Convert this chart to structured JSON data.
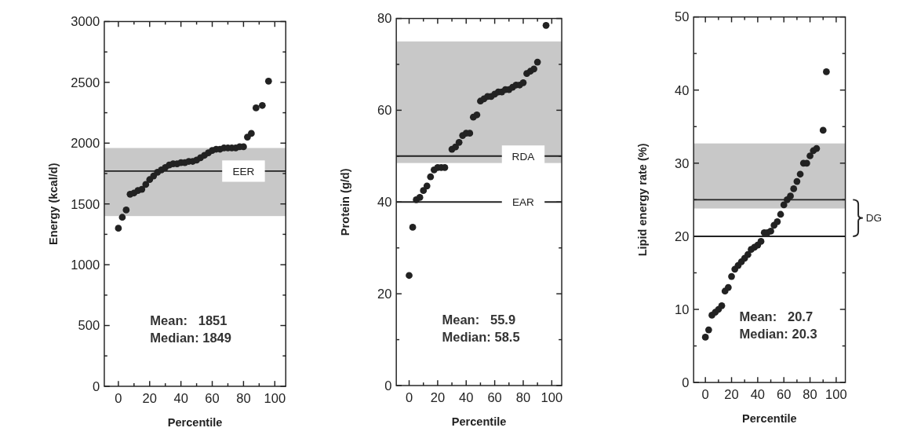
{
  "chart_data": [
    {
      "type": "scatter",
      "xlabel": "Percentile",
      "ylabel": "Energy (kcal/d)",
      "xlim": [
        -9,
        107
      ],
      "ylim": [
        0,
        3000
      ],
      "xticks": [
        0,
        {
          "value": 10,
          "label": null
        },
        20,
        {
          "value": 30,
          "label": null
        },
        40,
        {
          "value": 50,
          "label": null
        },
        60,
        {
          "value": 70,
          "label": null
        },
        80,
        {
          "value": 90,
          "label": null
        },
        100
      ],
      "yticks": [
        0,
        {
          "value": 250,
          "label": null
        },
        500,
        {
          "value": 750,
          "label": null
        },
        1000,
        {
          "value": 1250,
          "label": null
        },
        1500,
        {
          "value": 1750,
          "label": null
        },
        2000,
        {
          "value": 2250,
          "label": null
        },
        2500,
        {
          "value": 2750,
          "label": null
        },
        3000
      ],
      "marker": "circle",
      "series": [
        {
          "color": "#222222",
          "x": [
            0,
            2.5,
            5,
            7.5,
            10,
            12.5,
            15,
            17.5,
            20,
            22.5,
            25,
            27.5,
            30,
            32.5,
            35,
            37.5,
            40,
            42.5,
            45,
            47.5,
            50,
            52.5,
            55,
            57.5,
            60,
            62.5,
            65,
            67.5,
            70,
            72.5,
            75,
            77.5,
            80,
            82.5,
            85,
            88,
            92,
            96
          ],
          "values": [
            1300,
            1390,
            1450,
            1580,
            1590,
            1610,
            1620,
            1660,
            1700,
            1730,
            1760,
            1780,
            1800,
            1820,
            1830,
            1830,
            1840,
            1840,
            1850,
            1850,
            1860,
            1880,
            1900,
            1920,
            1940,
            1950,
            1950,
            1960,
            1960,
            1960,
            1960,
            1970,
            1970,
            2050,
            2080,
            2290,
            2310,
            2510
          ]
        }
      ],
      "bands": [
        {
          "axis": "y",
          "from": 1400,
          "to": 1960,
          "color": "#c8c8c8"
        }
      ],
      "ref_lines": [
        {
          "axis": "y",
          "value": 1770,
          "label": "EER",
          "color": "#222222"
        }
      ],
      "annotations": [
        "Mean:   1851",
        "Median: 1849"
      ]
    },
    {
      "type": "scatter",
      "xlabel": "Percentile",
      "ylabel": "Protein (g/d)",
      "xlim": [
        -9,
        107
      ],
      "ylim": [
        0,
        80
      ],
      "xticks": [
        0,
        {
          "value": 10,
          "label": null
        },
        20,
        {
          "value": 30,
          "label": null
        },
        40,
        {
          "value": 50,
          "label": null
        },
        60,
        {
          "value": 70,
          "label": null
        },
        80,
        {
          "value": 90,
          "label": null
        },
        100
      ],
      "yticks": [
        0,
        {
          "value": 10,
          "label": null
        },
        20,
        {
          "value": 30,
          "label": null
        },
        40,
        {
          "value": 50,
          "label": null
        },
        60,
        {
          "value": 70,
          "label": null
        },
        80
      ],
      "marker": "circle",
      "series": [
        {
          "color": "#222222",
          "x": [
            0,
            2.5,
            5,
            7.5,
            10,
            12.5,
            15,
            17.5,
            20,
            22.5,
            25,
            30,
            32.5,
            35,
            37.5,
            40,
            42.5,
            45,
            47.5,
            50,
            52.5,
            55,
            57.5,
            60,
            62.5,
            65,
            67.5,
            70,
            72.5,
            75,
            77.5,
            80,
            82.5,
            85,
            87.5,
            90,
            96
          ],
          "values": [
            24,
            34.5,
            40.5,
            41,
            42.5,
            43.5,
            45.5,
            47,
            47.5,
            47.5,
            47.5,
            51.5,
            52,
            53,
            54.5,
            55,
            55,
            58.5,
            59,
            62,
            62.5,
            63,
            63,
            63.5,
            64,
            64,
            64.5,
            64.5,
            65,
            65.5,
            65.5,
            66,
            68,
            68.5,
            69,
            70.5,
            78.5
          ]
        }
      ],
      "bands": [
        {
          "axis": "y",
          "from": 48.5,
          "to": 75,
          "color": "#c8c8c8"
        }
      ],
      "ref_lines": [
        {
          "axis": "y",
          "value": 50,
          "label": "RDA",
          "color": "#222222"
        },
        {
          "axis": "y",
          "value": 40,
          "label": "EAR",
          "color": "#222222"
        }
      ],
      "annotations": [
        "Mean:   55.9",
        "Median: 58.5"
      ]
    },
    {
      "type": "scatter",
      "xlabel": "Percentile",
      "ylabel": "Lipid energy rate (%)",
      "xlim": [
        -9,
        107
      ],
      "ylim": [
        0,
        50
      ],
      "xticks": [
        0,
        {
          "value": 10,
          "label": null
        },
        20,
        {
          "value": 30,
          "label": null
        },
        40,
        {
          "value": 50,
          "label": null
        },
        60,
        {
          "value": 70,
          "label": null
        },
        80,
        {
          "value": 90,
          "label": null
        },
        100
      ],
      "yticks": [
        0,
        {
          "value": 5,
          "label": null
        },
        10,
        {
          "value": 15,
          "label": null
        },
        20,
        {
          "value": 25,
          "label": null
        },
        30,
        {
          "value": 35,
          "label": null
        },
        40,
        {
          "value": 45,
          "label": null
        },
        50
      ],
      "marker": "circle",
      "series": [
        {
          "color": "#222222",
          "x": [
            0,
            2.5,
            5,
            7.5,
            10,
            12.5,
            15,
            17.5,
            20,
            22.5,
            25,
            27.5,
            30,
            32.5,
            35,
            37.5,
            40,
            42.5,
            45,
            47.5,
            50,
            52.5,
            55,
            57.5,
            60,
            62.5,
            65,
            67.5,
            70,
            72.5,
            75,
            77.5,
            80,
            82.5,
            85,
            90,
            92.5
          ],
          "values": [
            6.2,
            7.2,
            9.2,
            9.6,
            10,
            10.5,
            12.5,
            13,
            14.5,
            15.5,
            16,
            16.5,
            17,
            17.5,
            18.2,
            18.5,
            18.8,
            19.3,
            20.5,
            20.5,
            20.7,
            21.5,
            22,
            23,
            24.3,
            25,
            25.5,
            26.5,
            27.5,
            28.5,
            30,
            30,
            31,
            31.7,
            32,
            34.5,
            42.5
          ]
        }
      ],
      "bands": [
        {
          "axis": "y",
          "from": 23.8,
          "to": 32.7,
          "color": "#c8c8c8"
        }
      ],
      "ref_lines": [
        {
          "axis": "y",
          "value": 25,
          "color": "#222222"
        },
        {
          "axis": "y",
          "value": 20,
          "color": "#222222"
        }
      ],
      "annotations": [
        "Mean:   20.7",
        "Median: 20.3",
        "DG"
      ]
    }
  ]
}
